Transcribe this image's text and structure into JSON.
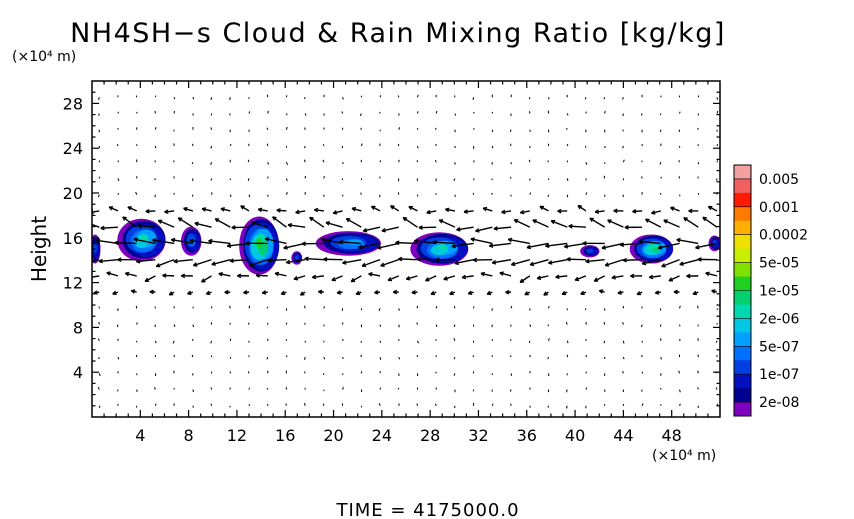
{
  "chart_data": {
    "type": "heatmap",
    "title": "NH4SH−s Cloud & Rain Mixing Ratio [kg/kg]",
    "ylabel": "Height",
    "y_unit": "(×10⁴ m)",
    "x_unit": "(×10⁴ m)",
    "footer": "TIME = 4175000.0",
    "xlim": [
      0,
      52
    ],
    "ylim": [
      0,
      30
    ],
    "x_ticks": [
      4,
      8,
      12,
      16,
      20,
      24,
      28,
      32,
      36,
      40,
      44,
      48
    ],
    "y_ticks": [
      4,
      8,
      12,
      16,
      20,
      24,
      28
    ],
    "x_tick_labels": [
      "4",
      "8",
      "12",
      "16",
      "20",
      "24",
      "28",
      "32",
      "36",
      "40",
      "44",
      "48"
    ],
    "y_tick_labels": [
      "4",
      "8",
      "12",
      "16",
      "20",
      "24",
      "28"
    ],
    "colorbar": {
      "labels": [
        "0.005",
        "0.001",
        "0.0002",
        "5e-05",
        "1e-05",
        "2e-06",
        "5e-07",
        "1e-07",
        "2e-08"
      ],
      "colors": [
        "#f4a0a0",
        "#f06060",
        "#ff1a00",
        "#ff7a00",
        "#ffb000",
        "#f0e000",
        "#c8ee00",
        "#80e000",
        "#20d020",
        "#00d070",
        "#00d8b0",
        "#00c8e0",
        "#00a0ff",
        "#0070ff",
        "#0040e0",
        "#0010c0",
        "#000090",
        "#8000c0"
      ]
    },
    "clouds": [
      {
        "x": 0.3,
        "y": 15.0,
        "w": 0.9,
        "h": 2.6,
        "peak": 4
      },
      {
        "x": 4.3,
        "y": 15.8,
        "w": 4.0,
        "h": 3.8,
        "peak": 8
      },
      {
        "x": 8.3,
        "y": 15.7,
        "w": 1.7,
        "h": 2.6,
        "peak": 5
      },
      {
        "x": 14.0,
        "y": 15.3,
        "w": 3.3,
        "h": 5.2,
        "peak": 10
      },
      {
        "x": 17.0,
        "y": 14.2,
        "w": 0.9,
        "h": 1.2,
        "peak": 4
      },
      {
        "x": 21.5,
        "y": 15.5,
        "w": 5.4,
        "h": 2.2,
        "peak": 6
      },
      {
        "x": 29.0,
        "y": 15.0,
        "w": 4.8,
        "h": 3.0,
        "peak": 8
      },
      {
        "x": 41.3,
        "y": 14.8,
        "w": 1.6,
        "h": 1.1,
        "peak": 4
      },
      {
        "x": 46.5,
        "y": 15.0,
        "w": 3.6,
        "h": 2.6,
        "peak": 9
      },
      {
        "x": 51.6,
        "y": 15.5,
        "w": 1.0,
        "h": 1.4,
        "peak": 4
      }
    ]
  }
}
